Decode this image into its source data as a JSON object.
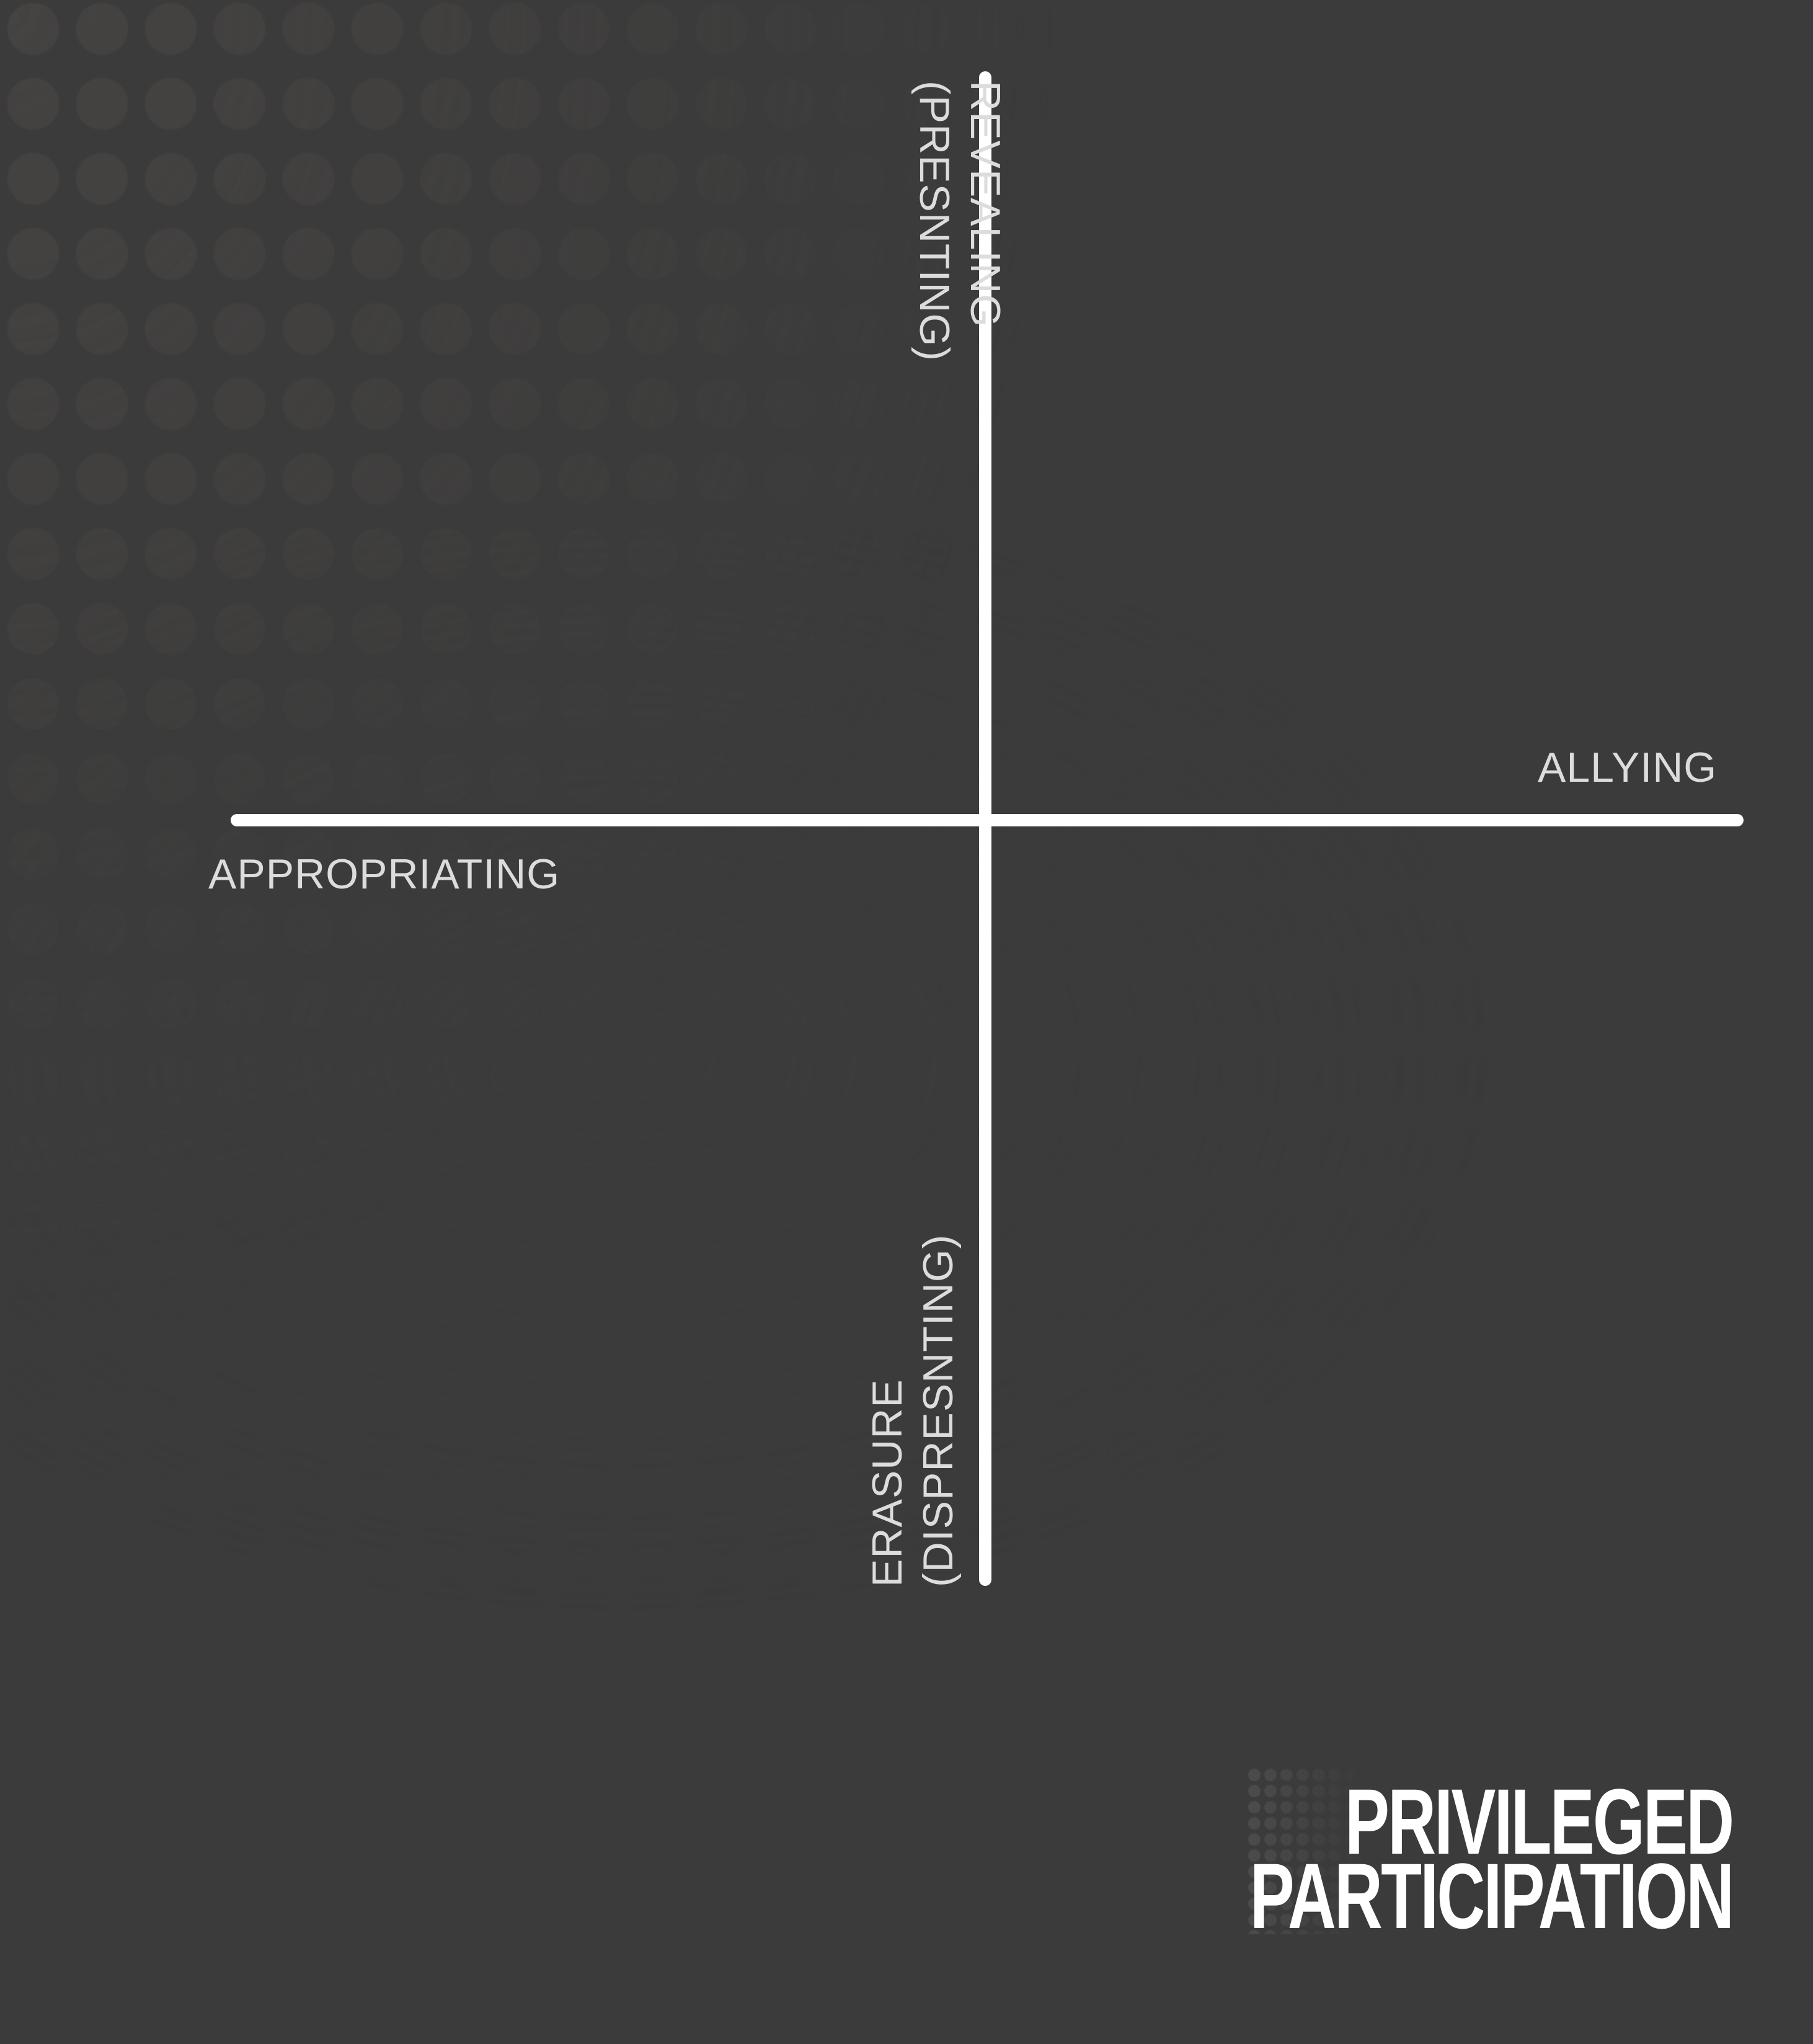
{
  "title": {
    "line1": "PRIVILEGED",
    "line2": "PARTICIPATION"
  },
  "axes": {
    "right": "ALLYING",
    "left": "APPROPRIATING",
    "top": {
      "line1": "REVEALING",
      "line2": "(PRESNTING)"
    },
    "bottom": {
      "line1": "ERASURE",
      "line2": "(DISPRESNTING)"
    }
  },
  "colors": {
    "background": "#3b3b3b",
    "axis_line": "#ffffff",
    "label_text": "#dcdcdc",
    "title_text": "#ffffff"
  }
}
